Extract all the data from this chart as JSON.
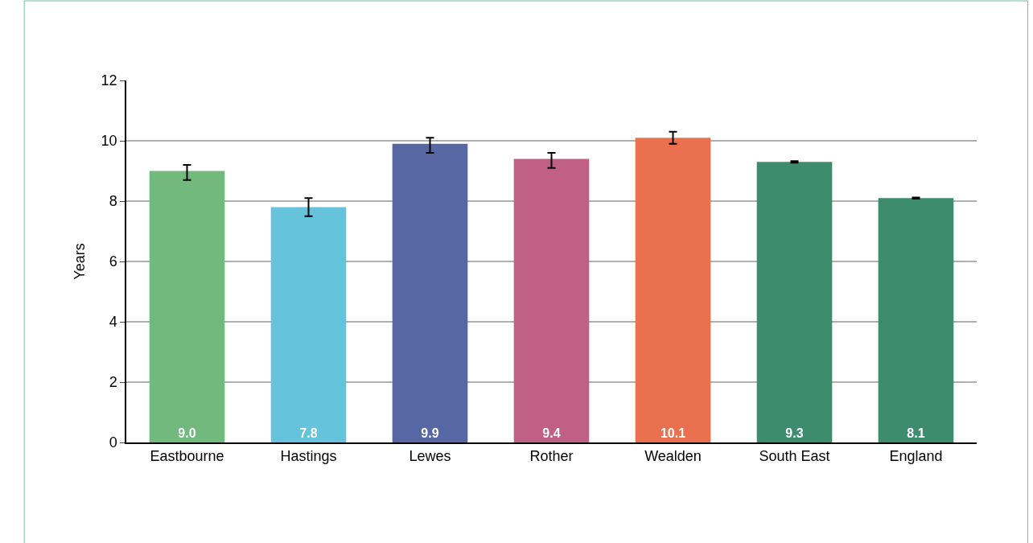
{
  "chart_data": {
    "type": "bar",
    "ylabel": "Years",
    "categories": [
      "Eastbourne",
      "Hastings",
      "Lewes",
      "Rother",
      "Wealden",
      "South East",
      "England"
    ],
    "values": [
      9.0,
      7.8,
      9.9,
      9.4,
      10.1,
      9.3,
      8.1
    ],
    "value_labels": [
      "9.0",
      "7.8",
      "9.9",
      "9.4",
      "10.1",
      "9.3",
      "8.1"
    ],
    "colors": [
      "#72b97d",
      "#65c3dc",
      "#5667a3",
      "#c06085",
      "#eb704f",
      "#3d8c6d",
      "#3d8c6d"
    ],
    "errors": [
      [
        8.7,
        9.2
      ],
      [
        7.5,
        8.1
      ],
      [
        9.6,
        10.1
      ],
      [
        9.1,
        9.6
      ],
      [
        9.9,
        10.3
      ],
      0.03,
      0.02
    ],
    "ylim": [
      0,
      12
    ],
    "yticks": [
      0,
      2,
      4,
      6,
      8,
      10,
      12
    ],
    "grid": "y"
  }
}
